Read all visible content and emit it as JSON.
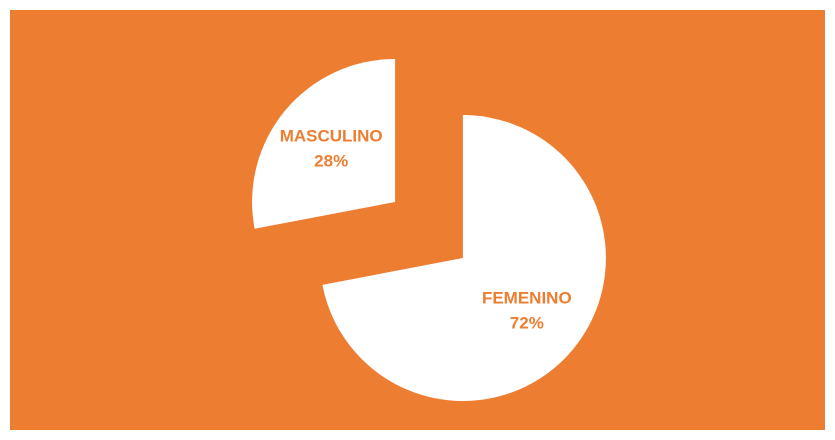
{
  "chart_data": {
    "type": "pie",
    "categories": [
      "FEMENINO",
      "MASCULINO"
    ],
    "values": [
      72,
      28
    ],
    "value_labels": [
      "72%",
      "28%"
    ],
    "slice_color": "#ffffff",
    "background": "#ed7d31",
    "label_color": "#ed7d31",
    "exploded": true
  }
}
